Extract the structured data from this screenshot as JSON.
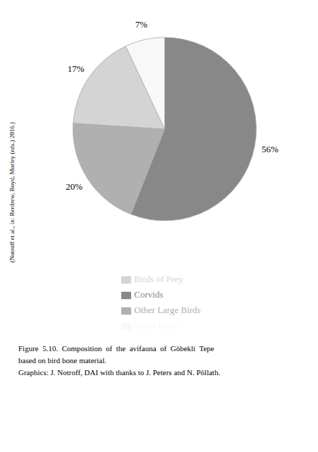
{
  "chart_data": {
    "type": "pie",
    "categories": [
      "Corvids",
      "Other Large Birds",
      "Birds of Prey",
      "Small Birds"
    ],
    "values": [
      56,
      20,
      17,
      7
    ],
    "value_labels": [
      "56%",
      "20%",
      "17%",
      "7%"
    ],
    "colors": [
      "#888888",
      "#b0b0b0",
      "#d4d4d4",
      "#f8f8f8"
    ],
    "data_labels": true,
    "legend": "bottom",
    "annotations": [
      "Figure  5.10.  Composition  of  the  avifauna  of  Göbekli  Tepe",
      "based on bird bone material.",
      "Graphics: J. Notroff, DAI with thanks to J. Peters and N. Pöllath.",
      "(Notroff et al., in: Renfrew, Boyd, Morley (eds.) 2016.)"
    ]
  }
}
